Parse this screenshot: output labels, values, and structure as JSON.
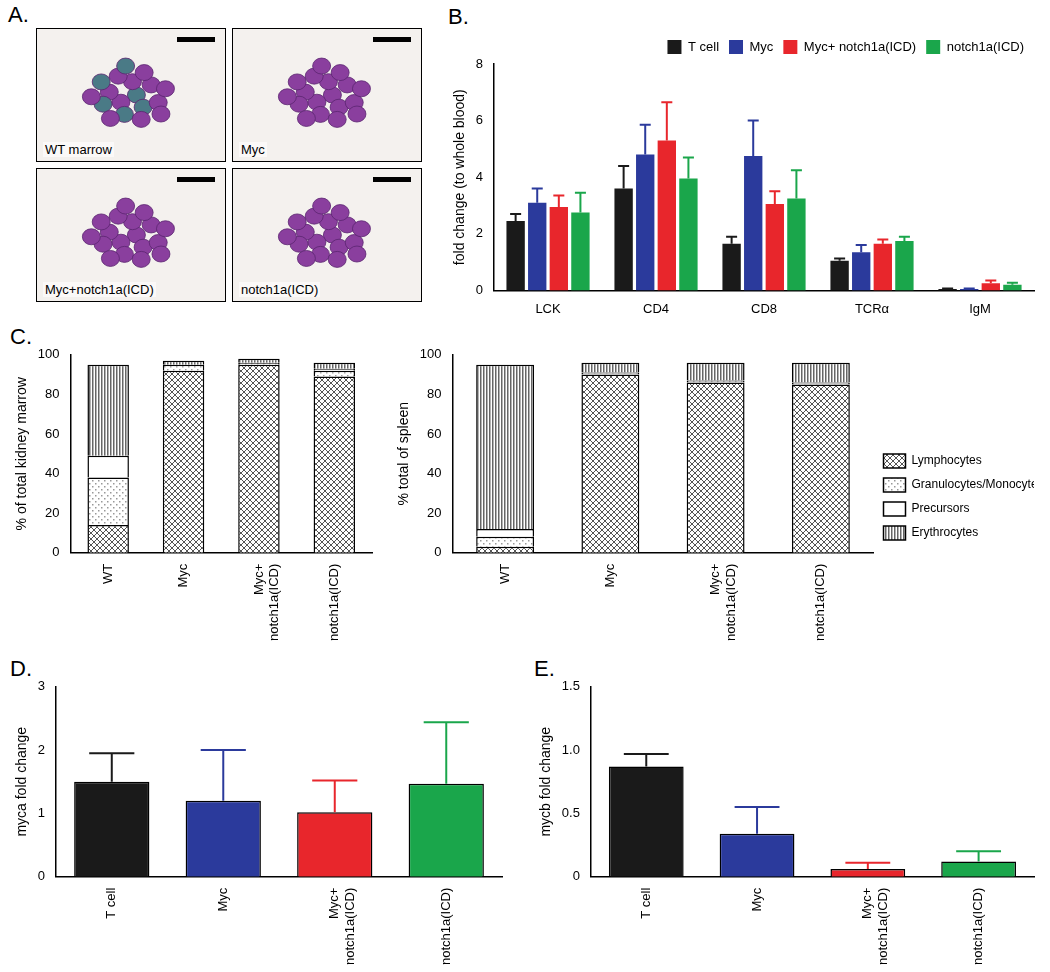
{
  "images": {
    "annotation": "A.",
    "panels": [
      "WT marrow",
      "Myc",
      "Myc+notch1a(ICD)",
      "notch1a(ICD)"
    ]
  },
  "chart_data": [
    {
      "type": "bar",
      "annotation": "B.",
      "categories": [
        "LCK",
        "CD4",
        "CD8",
        "TCRα",
        "IgM"
      ],
      "y_label": "fold change (to whole blood)",
      "ylim": [
        0,
        8
      ],
      "yticks": [
        0,
        2,
        4,
        6,
        8
      ],
      "grid": false,
      "legend": "upper right",
      "series": [
        {
          "name": "T cell",
          "color": "#1a1a1a",
          "values": [
            2.45,
            3.6,
            1.65,
            1.05,
            0.05
          ],
          "errors": [
            0.25,
            0.8,
            0.25,
            0.08,
            0.02
          ]
        },
        {
          "name": "Myc",
          "color": "#2b3a9c",
          "values": [
            3.1,
            4.8,
            4.75,
            1.35,
            0.05
          ],
          "errors": [
            0.5,
            1.05,
            1.25,
            0.25,
            0.02
          ]
        },
        {
          "name": "Myc+ notch1a(ICD)",
          "color": "#e8262c",
          "values": [
            2.95,
            5.3,
            3.05,
            1.65,
            0.25
          ],
          "errors": [
            0.4,
            1.35,
            0.45,
            0.15,
            0.1
          ]
        },
        {
          "name": "notch1a(ICD)",
          "color": "#1aa64b",
          "values": [
            2.75,
            3.95,
            3.25,
            1.75,
            0.2
          ],
          "errors": [
            0.7,
            0.75,
            1.0,
            0.15,
            0.07
          ]
        }
      ]
    },
    {
      "type": "bar",
      "annotation": "C.",
      "stacked": true,
      "categories": [
        "WT",
        "Myc",
        "Myc+\nnotch1a(ICD)",
        "notch1a(ICD)"
      ],
      "y_label": "% of total kidney marrow",
      "ylim": [
        0,
        100
      ],
      "yticks": [
        0,
        20,
        40,
        60,
        80,
        100
      ],
      "grid": false,
      "series": [
        {
          "name": "Lymphocytes",
          "color": "#555555",
          "values": [
            14,
            92,
            95,
            89
          ]
        },
        {
          "name": "Granulocytes/Monocytes",
          "color": "#999999",
          "values": [
            24,
            3,
            1,
            3
          ]
        },
        {
          "name": "Precursors",
          "color": "#ffffff",
          "values": [
            11,
            0,
            0,
            1
          ]
        },
        {
          "name": "Erythrocytes",
          "color": "#666666",
          "values": [
            46,
            2,
            2,
            3
          ]
        }
      ]
    },
    {
      "type": "bar",
      "stacked": true,
      "categories": [
        "WT",
        "Myc",
        "Myc+\nnotch1a(ICD)",
        "notch1a(ICD)"
      ],
      "y_label": "% total of spleen",
      "ylim": [
        0,
        100
      ],
      "yticks": [
        0,
        20,
        40,
        60,
        80,
        100
      ],
      "grid": false,
      "legend": "right",
      "series": [
        {
          "name": "Lymphocytes",
          "color": "#555555",
          "values": [
            3,
            90,
            86,
            85
          ]
        },
        {
          "name": "Granulocytes/Monocytes",
          "color": "#999999",
          "values": [
            5,
            1,
            1,
            1
          ]
        },
        {
          "name": "Precursors",
          "color": "#ffffff",
          "values": [
            4,
            0,
            0,
            0
          ]
        },
        {
          "name": "Erythrocytes",
          "color": "#666666",
          "values": [
            83,
            5,
            9,
            10
          ]
        }
      ]
    },
    {
      "type": "bar",
      "annotation": "D.",
      "categories": [
        "T cell",
        "Myc",
        "Myc+\nnotch1a(ICD)",
        "notch1a(ICD)"
      ],
      "y_label": "myca fold change",
      "ylim": [
        0,
        3
      ],
      "yticks": [
        0,
        1,
        2,
        3
      ],
      "grid": false,
      "values": [
        1.5,
        1.2,
        1.02,
        1.47
      ],
      "errors": [
        0.45,
        0.8,
        0.5,
        0.97
      ],
      "colors": [
        "#1a1a1a",
        "#2b3a9c",
        "#e8262c",
        "#1aa64b"
      ]
    },
    {
      "type": "bar",
      "annotation": "E.",
      "categories": [
        "T cell",
        "Myc",
        "Myc+\nnotch1a(ICD)",
        "notch1a(ICD)"
      ],
      "y_label": "mycb fold change",
      "ylim": [
        0,
        1.5
      ],
      "yticks": [
        0,
        0.5,
        {
          "value": 1,
          "label": "1.0"
        },
        1.5
      ],
      "grid": false,
      "values": [
        0.87,
        0.34,
        0.06,
        0.12
      ],
      "errors": [
        0.1,
        0.21,
        0.05,
        0.08
      ],
      "colors": [
        "#1a1a1a",
        "#2b3a9c",
        "#e8262c",
        "#1aa64b"
      ]
    }
  ]
}
